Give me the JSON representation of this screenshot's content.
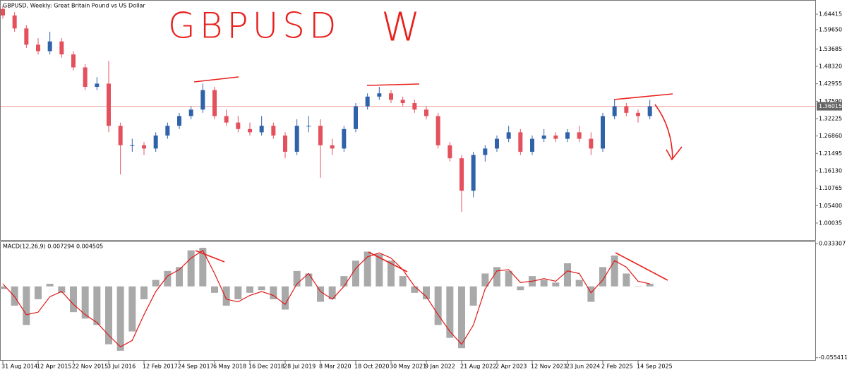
{
  "chart_data": [
    {
      "type": "candlestick",
      "title": "GBPUSD, Weekly:  Great Britain Pound vs US Dollar",
      "annotations": [
        "GBPUSD",
        "W"
      ],
      "categories": [
        "31 Aug 2014",
        null,
        null,
        "12 Apr 2015",
        null,
        null,
        "22 Nov 2015",
        null,
        null,
        "3 Jul 2016",
        null,
        null,
        "12 Feb 2017",
        null,
        null,
        "24 Sep 2017",
        null,
        null,
        "6 May 2018",
        null,
        null,
        "16 Dec 2018",
        null,
        null,
        "28 Jul 2019",
        null,
        null,
        "8 Mar 2020",
        null,
        null,
        "18 Oct 2020",
        null,
        null,
        "30 May 2021",
        null,
        null,
        "9 Jan 2022",
        null,
        null,
        "21 Aug 2022",
        null,
        null,
        "2 Apr 2023",
        null,
        null,
        "12 Nov 2023",
        null,
        null,
        "23 Jun 2024",
        null,
        null,
        "2 Feb 2025",
        null,
        null,
        "14 Sep 2025",
        null
      ],
      "open": [
        1.66,
        1.64,
        1.6,
        1.55,
        1.53,
        1.56,
        1.52,
        1.48,
        1.42,
        1.43,
        1.3,
        1.24,
        1.24,
        1.23,
        1.27,
        1.3,
        1.33,
        1.35,
        1.41,
        1.33,
        1.31,
        1.29,
        1.28,
        1.3,
        1.27,
        1.22,
        1.3,
        1.3,
        1.24,
        1.23,
        1.29,
        1.36,
        1.39,
        1.4,
        1.38,
        1.37,
        1.35,
        1.33,
        1.24,
        1.2,
        1.1,
        1.21,
        1.23,
        1.26,
        1.28,
        1.22,
        1.26,
        1.27,
        1.26,
        1.28,
        1.26,
        1.23,
        1.33,
        1.36,
        1.34,
        1.33
      ],
      "high": [
        1.67,
        1.65,
        1.61,
        1.57,
        1.59,
        1.57,
        1.53,
        1.49,
        1.45,
        1.5,
        1.31,
        1.26,
        1.25,
        1.28,
        1.31,
        1.34,
        1.36,
        1.43,
        1.42,
        1.35,
        1.33,
        1.31,
        1.33,
        1.31,
        1.28,
        1.32,
        1.33,
        1.32,
        1.26,
        1.3,
        1.37,
        1.4,
        1.42,
        1.41,
        1.39,
        1.38,
        1.36,
        1.34,
        1.25,
        1.21,
        1.22,
        1.24,
        1.27,
        1.3,
        1.29,
        1.27,
        1.29,
        1.28,
        1.29,
        1.3,
        1.28,
        1.34,
        1.38,
        1.37,
        1.35,
        1.38
      ],
      "low": [
        1.63,
        1.59,
        1.54,
        1.52,
        1.52,
        1.51,
        1.47,
        1.41,
        1.41,
        1.28,
        1.15,
        1.22,
        1.21,
        1.22,
        1.26,
        1.29,
        1.32,
        1.34,
        1.32,
        1.3,
        1.28,
        1.27,
        1.27,
        1.26,
        1.2,
        1.21,
        1.28,
        1.14,
        1.21,
        1.22,
        1.28,
        1.35,
        1.38,
        1.37,
        1.36,
        1.34,
        1.32,
        1.23,
        1.19,
        1.035,
        1.08,
        1.19,
        1.22,
        1.25,
        1.21,
        1.21,
        1.25,
        1.25,
        1.25,
        1.25,
        1.21,
        1.22,
        1.32,
        1.33,
        1.31,
        1.32
      ],
      "close": [
        1.64,
        1.6,
        1.55,
        1.53,
        1.56,
        1.52,
        1.48,
        1.42,
        1.43,
        1.3,
        1.24,
        1.24,
        1.23,
        1.27,
        1.3,
        1.33,
        1.35,
        1.41,
        1.33,
        1.31,
        1.29,
        1.28,
        1.3,
        1.27,
        1.22,
        1.3,
        1.3,
        1.24,
        1.23,
        1.29,
        1.36,
        1.39,
        1.4,
        1.38,
        1.37,
        1.35,
        1.33,
        1.24,
        1.2,
        1.1,
        1.21,
        1.23,
        1.26,
        1.28,
        1.22,
        1.26,
        1.27,
        1.26,
        1.28,
        1.26,
        1.23,
        1.33,
        1.36,
        1.34,
        1.33,
        1.36
      ],
      "up_color": "#2f62a8",
      "down_color": "#e4505c",
      "current_price": 1.36015,
      "ylim": [
        0.9481,
        1.6833
      ],
      "yticks": [
        1.64415,
        {
          "value": 1.5965,
          "label": "1.59650"
        },
        1.53685,
        {
          "value": 1.4832,
          "label": "1.48320"
        },
        1.42955,
        {
          "value": 1.3759,
          "label": "1.37590"
        },
        1.32225,
        {
          "value": 1.2686,
          "label": "1.26860"
        },
        1.21495,
        {
          "value": 1.1613,
          "label": "1.16130"
        },
        1.10765,
        {
          "value": 1.054,
          "label": "1.05400"
        },
        1.00035
      ]
    },
    {
      "type": "macd",
      "title": "MACD(12,26,9) 0.007294 0.004505",
      "histogram": {
        "color": "#a9a9a9",
        "values": [
          -0.002,
          -0.015,
          -0.03,
          -0.01,
          0.002,
          -0.005,
          -0.02,
          -0.025,
          -0.03,
          -0.045,
          -0.05,
          -0.035,
          -0.01,
          0.005,
          0.012,
          0.015,
          0.028,
          0.03,
          -0.005,
          -0.015,
          -0.01,
          -0.005,
          -0.003,
          -0.01,
          -0.018,
          0.012,
          0.01,
          -0.012,
          -0.01,
          0.008,
          0.02,
          0.027,
          0.025,
          0.02,
          0.008,
          -0.005,
          -0.01,
          -0.03,
          -0.04,
          -0.048,
          -0.015,
          0.01,
          0.015,
          0.012,
          -0.003,
          0.008,
          0.005,
          0.003,
          0.018,
          0.005,
          -0.012,
          0.015,
          0.024,
          0.01,
          0.0,
          0.002
        ]
      },
      "signal": {
        "color": "#e01818",
        "values": [
          0.002,
          -0.008,
          -0.022,
          -0.02,
          -0.008,
          -0.004,
          -0.014,
          -0.022,
          -0.028,
          -0.038,
          -0.047,
          -0.042,
          -0.022,
          -0.004,
          0.008,
          0.013,
          0.022,
          0.028,
          0.01,
          -0.01,
          -0.012,
          -0.007,
          -0.004,
          -0.007,
          -0.014,
          0.002,
          0.01,
          -0.004,
          -0.01,
          0.0,
          0.014,
          0.023,
          0.026,
          0.022,
          0.013,
          0.0,
          -0.008,
          -0.022,
          -0.035,
          -0.045,
          -0.03,
          -0.002,
          0.012,
          0.013,
          0.003,
          0.004,
          0.006,
          0.004,
          0.012,
          0.01,
          -0.005,
          0.005,
          0.02,
          0.015,
          0.004,
          0.002
        ]
      },
      "ylim": [
        -0.0572,
        0.0344
      ],
      "yticks": [
        0.033307,
        -0.055411
      ]
    }
  ]
}
